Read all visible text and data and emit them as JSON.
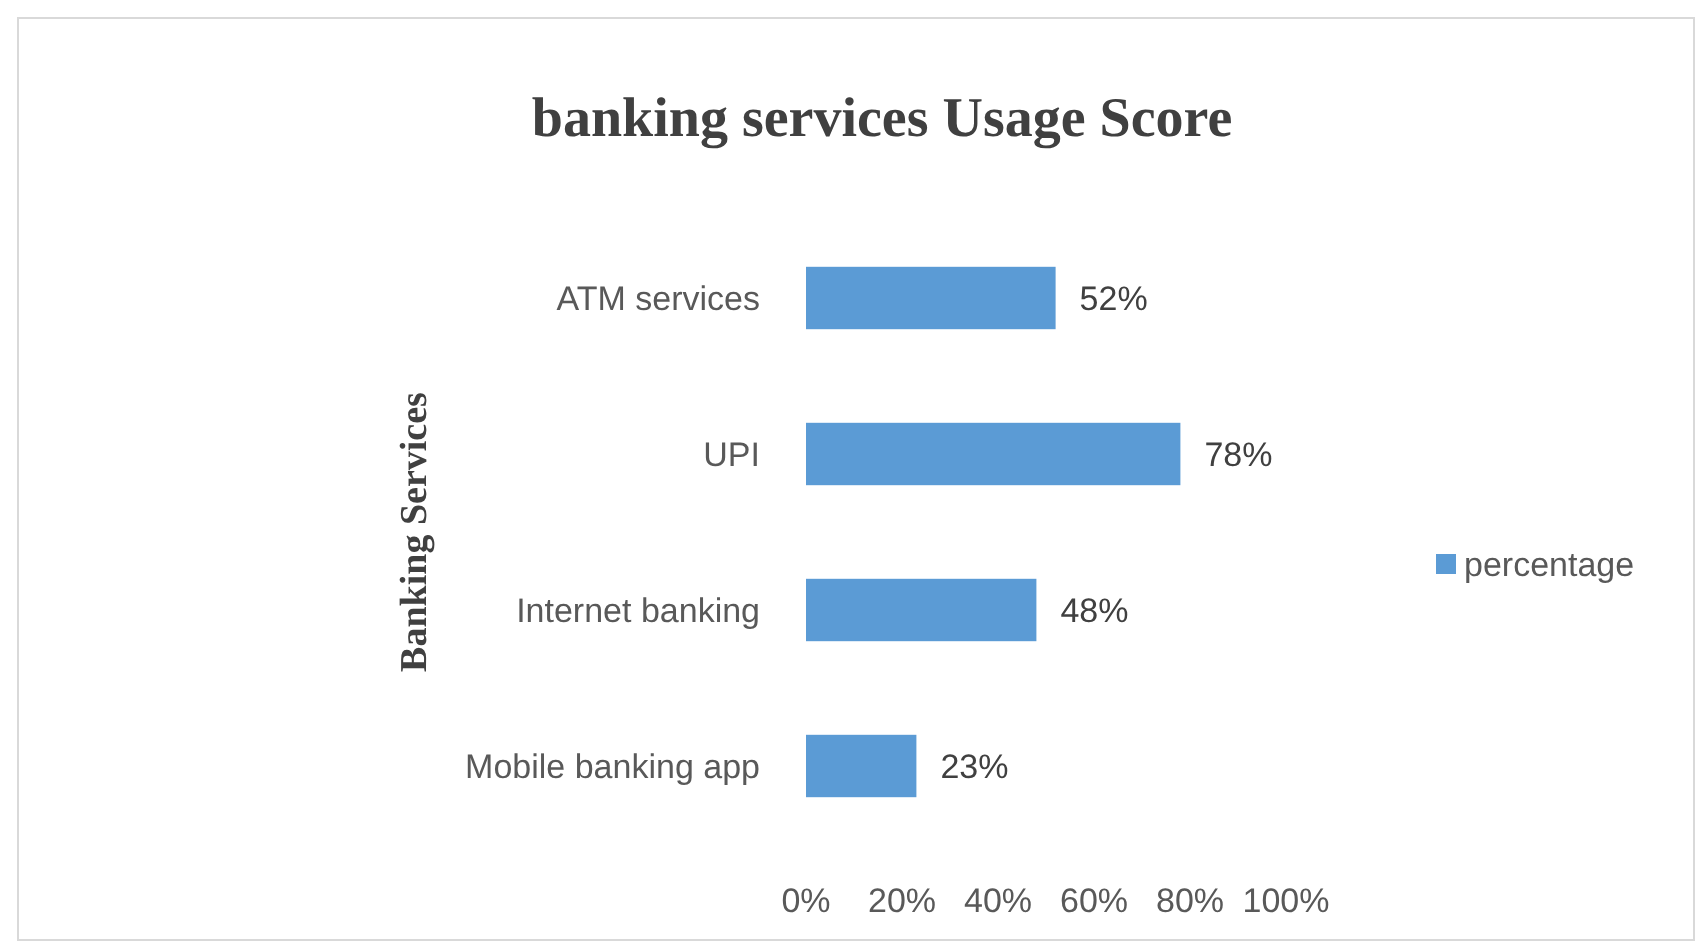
{
  "chart_data": {
    "type": "bar",
    "orientation": "horizontal",
    "title": "banking services Usage Score",
    "ylabel": "Banking Services",
    "categories": [
      "ATM services",
      "UPI",
      "Internet banking",
      "Mobile banking app"
    ],
    "series": [
      {
        "name": "percentage",
        "color": "#5b9bd5",
        "values": [
          52,
          78,
          48,
          23
        ]
      }
    ],
    "value_labels": [
      "52%",
      "78%",
      "48%",
      "23%"
    ],
    "xlim": [
      0,
      100
    ],
    "xticks": [
      {
        "value": 0,
        "label": "0%"
      },
      {
        "value": 20,
        "label": "20%"
      },
      {
        "value": 40,
        "label": "40%"
      },
      {
        "value": 60,
        "label": "60%"
      },
      {
        "value": 80,
        "label": "80%"
      },
      {
        "value": 100,
        "label": "100%"
      }
    ],
    "grid": false,
    "legend": "right"
  }
}
